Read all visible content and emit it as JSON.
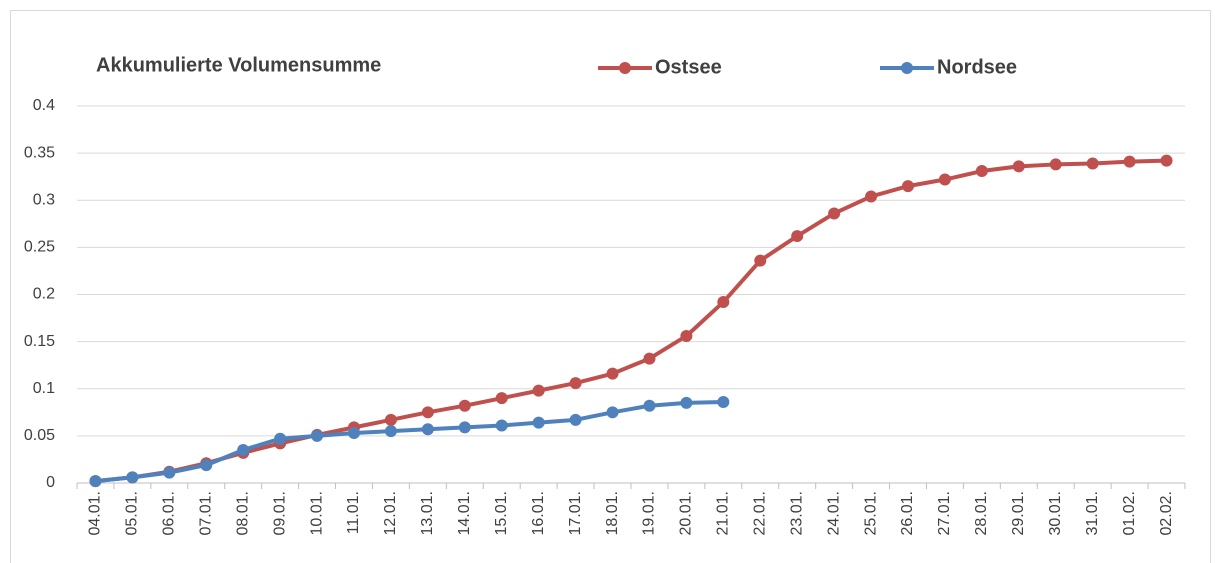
{
  "chart_data": {
    "type": "line",
    "title": "Akkumulierte Volumensumme",
    "categories": [
      "04.01.",
      "05.01.",
      "06.01.",
      "07.01.",
      "08.01.",
      "09.01.",
      "10.01.",
      "11.01.",
      "12.01.",
      "13.01.",
      "14.01.",
      "15.01.",
      "16.01.",
      "17.01.",
      "18.01.",
      "19.01.",
      "20.01.",
      "21.01.",
      "22.01.",
      "23.01.",
      "24.01.",
      "25.01.",
      "26.01.",
      "27.01.",
      "28.01.",
      "29.01.",
      "30.01.",
      "31.01.",
      "01.02.",
      "02.02."
    ],
    "series": [
      {
        "name": "Ostsee",
        "color": "#c0504d",
        "values": [
          0.002,
          0.006,
          0.012,
          0.021,
          0.032,
          0.042,
          0.051,
          0.059,
          0.067,
          0.075,
          0.082,
          0.09,
          0.098,
          0.106,
          0.116,
          0.132,
          0.156,
          0.192,
          0.236,
          0.262,
          0.286,
          0.304,
          0.315,
          0.322,
          0.331,
          0.336,
          0.338,
          0.339,
          0.341,
          0.342
        ]
      },
      {
        "name": "Nordsee",
        "color": "#4f81bd",
        "values": [
          0.002,
          0.006,
          0.011,
          0.019,
          0.035,
          0.047,
          0.05,
          0.053,
          0.055,
          0.057,
          0.059,
          0.061,
          0.064,
          0.067,
          0.075,
          0.082,
          0.085,
          0.086,
          null,
          null,
          null,
          null,
          null,
          null,
          null,
          null,
          null,
          null,
          null,
          null
        ]
      }
    ],
    "ylim": [
      0,
      0.4
    ],
    "yticks": [
      0,
      0.05,
      0.1,
      0.15,
      0.2,
      0.25,
      0.3,
      0.35,
      0.4
    ],
    "grid": true
  }
}
